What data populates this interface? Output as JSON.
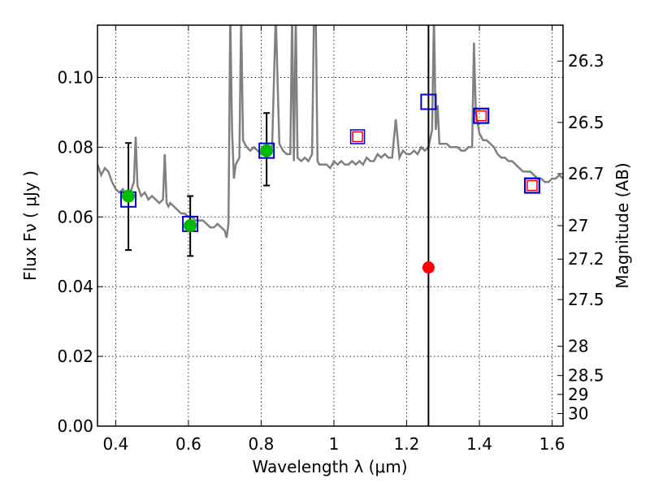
{
  "chart_data": {
    "type": "scatter",
    "xlabel": "Wavelength  λ (μm)",
    "ylabel": "Flux  Fν  ( μJy )",
    "ylabel_right": "Magnitude (AB)",
    "xlim": [
      0.35,
      1.63
    ],
    "ylim": [
      0.0,
      0.115
    ],
    "grid": true,
    "x_ticks": [
      0.4,
      0.6,
      0.8,
      1.0,
      1.2,
      1.4,
      1.6
    ],
    "x_tick_labels": [
      "0.4",
      "0.6",
      "0.8",
      "1",
      "1.2",
      "1.4",
      "1.6"
    ],
    "y_ticks": [
      0.0,
      0.02,
      0.04,
      0.06,
      0.08,
      0.1
    ],
    "y_tick_labels": [
      "0.00",
      "0.02",
      "0.04",
      "0.06",
      "0.08",
      "0.10"
    ],
    "right_ticks": [
      {
        "flux": 0.1047,
        "label": "26.3"
      },
      {
        "flux": 0.0871,
        "label": "26.5"
      },
      {
        "flux": 0.0724,
        "label": "26.7"
      },
      {
        "flux": 0.0575,
        "label": "27"
      },
      {
        "flux": 0.0479,
        "label": "27.2"
      },
      {
        "flux": 0.0363,
        "label": "27.5"
      },
      {
        "flux": 0.0229,
        "label": "28"
      },
      {
        "flux": 0.0145,
        "label": "28.5"
      },
      {
        "flux": 0.0091,
        "label": "29"
      },
      {
        "flux": 0.0036,
        "label": "30"
      }
    ],
    "vline_x": 1.26,
    "colors": {
      "spectrum": "#808080",
      "model_box": "#0000cc",
      "inner_box": "#ee0000",
      "detection": "#00bb00",
      "upper_point": "#ff0000",
      "errorbar": "#000000",
      "vline": "#000000"
    },
    "series": [
      {
        "kind": "spectrum",
        "x": [
          0.35,
          0.36,
          0.37,
          0.38,
          0.39,
          0.4,
          0.41,
          0.42,
          0.43,
          0.44,
          0.45,
          0.455,
          0.46,
          0.47,
          0.48,
          0.49,
          0.5,
          0.51,
          0.52,
          0.53,
          0.535,
          0.54,
          0.545,
          0.55,
          0.56,
          0.57,
          0.58,
          0.59,
          0.6,
          0.61,
          0.62,
          0.63,
          0.64,
          0.65,
          0.66,
          0.67,
          0.68,
          0.69,
          0.7,
          0.705,
          0.71,
          0.715,
          0.72,
          0.725,
          0.73,
          0.74,
          0.745,
          0.75,
          0.76,
          0.77,
          0.78,
          0.79,
          0.8,
          0.81,
          0.82,
          0.83,
          0.84,
          0.85,
          0.86,
          0.87,
          0.88,
          0.885,
          0.89,
          0.895,
          0.9,
          0.91,
          0.92,
          0.93,
          0.94,
          0.945,
          0.95,
          0.955,
          0.96,
          0.97,
          0.98,
          0.99,
          1.0,
          1.01,
          1.02,
          1.03,
          1.04,
          1.05,
          1.06,
          1.07,
          1.08,
          1.09,
          1.1,
          1.11,
          1.12,
          1.13,
          1.14,
          1.15,
          1.16,
          1.17,
          1.18,
          1.19,
          1.2,
          1.21,
          1.22,
          1.23,
          1.24,
          1.25,
          1.26,
          1.27,
          1.275,
          1.28,
          1.285,
          1.29,
          1.3,
          1.31,
          1.32,
          1.33,
          1.34,
          1.35,
          1.36,
          1.37,
          1.38,
          1.385,
          1.39,
          1.4,
          1.41,
          1.42,
          1.43,
          1.44,
          1.45,
          1.46,
          1.47,
          1.48,
          1.49,
          1.5,
          1.51,
          1.52,
          1.53,
          1.54,
          1.55,
          1.56,
          1.57,
          1.58,
          1.59,
          1.6,
          1.61,
          1.62,
          1.63
        ],
        "y": [
          0.075,
          0.072,
          0.074,
          0.073,
          0.07,
          0.068,
          0.067,
          0.068,
          0.066,
          0.067,
          0.07,
          0.083,
          0.069,
          0.066,
          0.067,
          0.065,
          0.066,
          0.065,
          0.064,
          0.065,
          0.078,
          0.064,
          0.063,
          0.064,
          0.063,
          0.062,
          0.061,
          0.061,
          0.06,
          0.06,
          0.059,
          0.059,
          0.059,
          0.058,
          0.057,
          0.057,
          0.058,
          0.057,
          0.056,
          0.054,
          0.058,
          0.118,
          0.085,
          0.071,
          0.075,
          0.077,
          0.118,
          0.082,
          0.08,
          0.079,
          0.08,
          0.079,
          0.078,
          0.08,
          0.079,
          0.08,
          0.118,
          0.081,
          0.079,
          0.078,
          0.078,
          0.118,
          0.076,
          0.118,
          0.077,
          0.076,
          0.077,
          0.076,
          0.078,
          0.118,
          0.118,
          0.076,
          0.075,
          0.075,
          0.075,
          0.074,
          0.076,
          0.075,
          0.076,
          0.075,
          0.075,
          0.076,
          0.075,
          0.076,
          0.075,
          0.077,
          0.076,
          0.076,
          0.078,
          0.077,
          0.078,
          0.077,
          0.077,
          0.088,
          0.077,
          0.079,
          0.078,
          0.078,
          0.079,
          0.078,
          0.08,
          0.079,
          0.08,
          0.085,
          0.118,
          0.085,
          0.092,
          0.081,
          0.081,
          0.081,
          0.08,
          0.08,
          0.08,
          0.079,
          0.079,
          0.08,
          0.08,
          0.11,
          0.09,
          0.084,
          0.082,
          0.082,
          0.081,
          0.08,
          0.078,
          0.077,
          0.077,
          0.076,
          0.076,
          0.075,
          0.074,
          0.073,
          0.073,
          0.073,
          0.072,
          0.071,
          0.071,
          0.07,
          0.07,
          0.071,
          0.071,
          0.072,
          0.071
        ]
      },
      {
        "kind": "model_boxes",
        "x": [
          0.435,
          0.605,
          0.815,
          1.26,
          1.405,
          1.545
        ],
        "y": [
          0.065,
          0.058,
          0.079,
          0.093,
          0.089,
          0.069
        ]
      },
      {
        "kind": "inner_boxes",
        "x": [
          1.065,
          1.405,
          1.545
        ],
        "y": [
          0.083,
          0.089,
          0.069
        ]
      },
      {
        "kind": "detections",
        "x": [
          0.435,
          0.605,
          0.815
        ],
        "y": [
          0.066,
          0.0575,
          0.079
        ],
        "err_low": [
          0.0505,
          0.0488,
          0.069
        ],
        "err_high": [
          0.0812,
          0.066,
          0.0898
        ]
      },
      {
        "kind": "upper_point",
        "x": [
          1.26
        ],
        "y": [
          0.0455
        ]
      }
    ]
  }
}
